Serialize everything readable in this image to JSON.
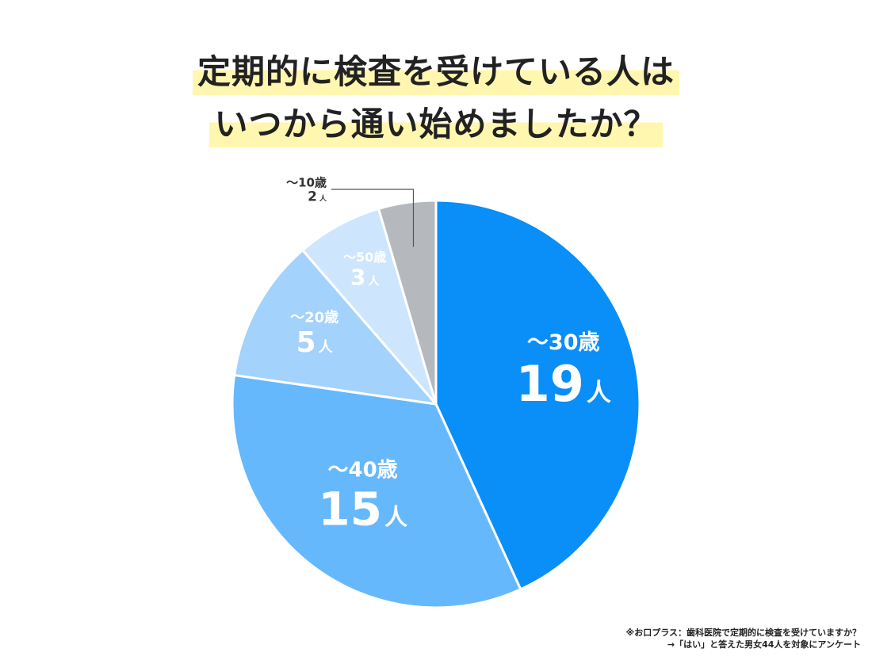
{
  "title": {
    "line1": "定期的に検査を受けている人は",
    "line2": "いつから通い始めましたか？"
  },
  "chart_data": {
    "type": "pie",
    "unit": "人",
    "slices": [
      {
        "category": "～30歳",
        "value": 19,
        "color": "#0a8ef8"
      },
      {
        "category": "～40歳",
        "value": 15,
        "color": "#66b8fc"
      },
      {
        "category": "～20歳",
        "value": 5,
        "color": "#a3d2fc"
      },
      {
        "category": "～50歳",
        "value": 3,
        "color": "#cde6fd"
      },
      {
        "category": "～10歳",
        "value": 2,
        "color": "#b5b9bd"
      }
    ]
  },
  "footnote": {
    "line1": "※お口プラス：歯科医院で定期的に検査を受けていますか？",
    "line2": "→「はい」と答えた男女44人を対象にアンケート"
  }
}
